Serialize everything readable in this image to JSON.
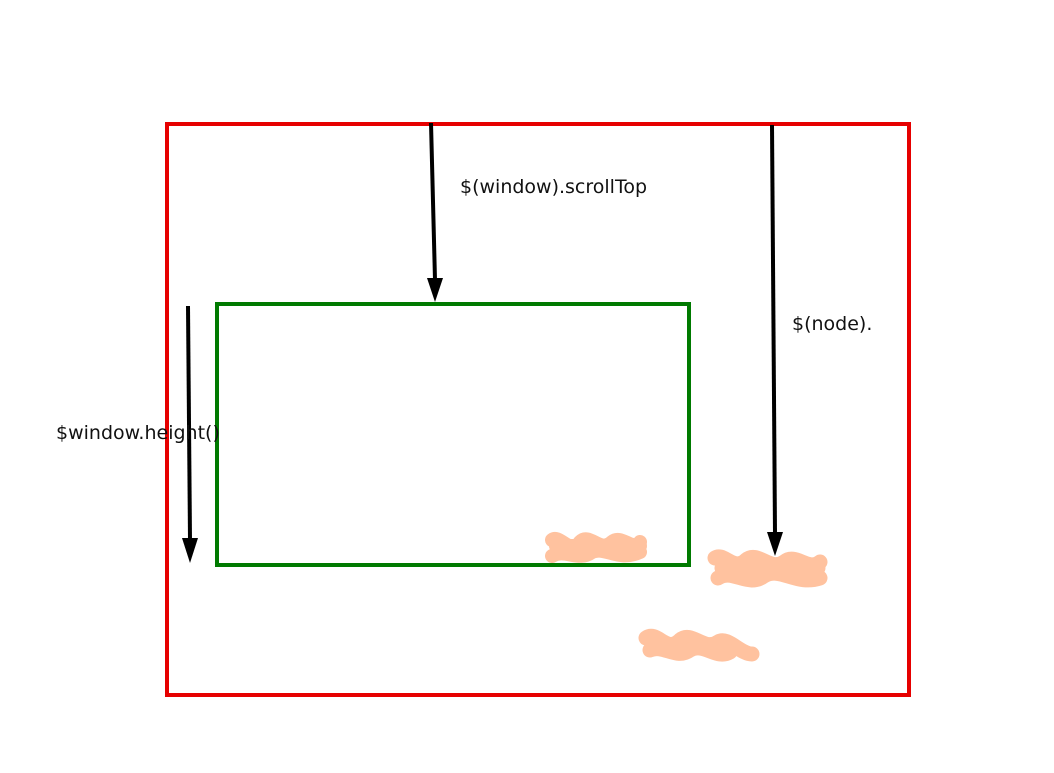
{
  "labels": {
    "scroll_top": "$(window).scrollTop",
    "node": "$(node).",
    "window_height": "$window.height()"
  },
  "colors": {
    "document_border": "#e60000",
    "viewport_border": "#007a00",
    "arrow": "#000000",
    "scribble": "#ffbf9a"
  }
}
